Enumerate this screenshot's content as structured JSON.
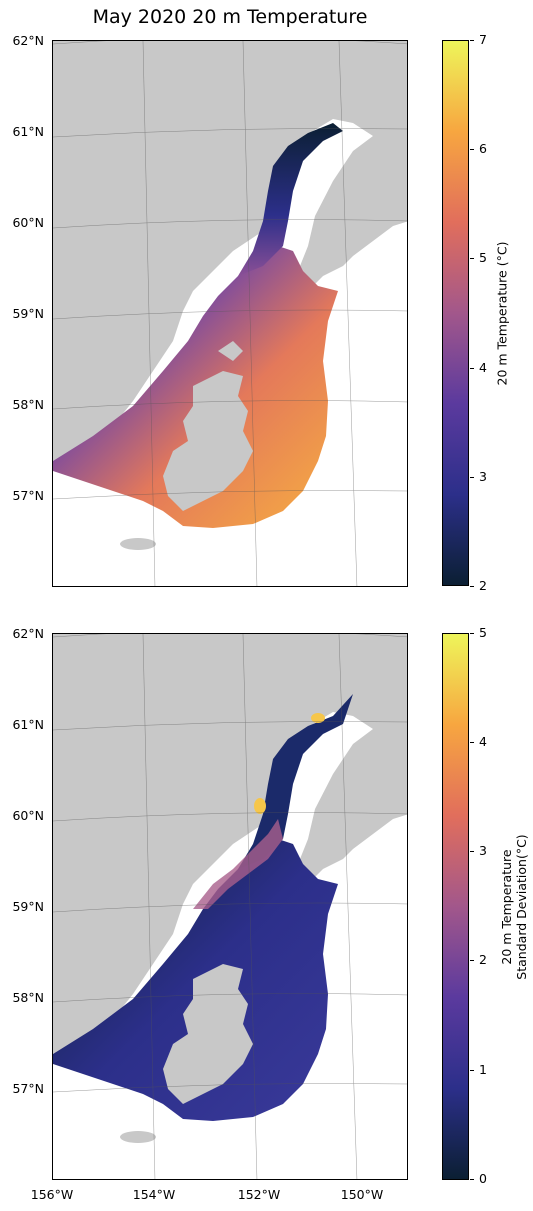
{
  "figure": {
    "title": "May 2020 20 m Temperature",
    "latitude_labels": [
      "62°N",
      "61°N",
      "60°N",
      "59°N",
      "58°N",
      "57°N"
    ],
    "longitude_labels": [
      "156°W",
      "154°W",
      "152°W",
      "150°W"
    ]
  },
  "panels": [
    {
      "variable": "20 m Temperature",
      "colorbar": {
        "label": "20 m Temperature (°C)",
        "ticks": [
          "2",
          "3",
          "4",
          "5",
          "6",
          "7"
        ],
        "range": [
          2,
          7
        ],
        "colormap": [
          "#0b1f33",
          "#2c2f8a",
          "#5b3a9e",
          "#a2578b",
          "#e16e5c",
          "#f7a640",
          "#eef55a"
        ]
      }
    },
    {
      "variable": "20 m Temperature Standard Deviation",
      "colorbar": {
        "label_line1": "20 m Temperature",
        "label_line2": "Standard Deviation(°C)",
        "ticks": [
          "0",
          "1",
          "2",
          "3",
          "4",
          "5"
        ],
        "range": [
          0,
          5
        ],
        "colormap": [
          "#0b1f33",
          "#2c2f8a",
          "#5b3a9e",
          "#a2578b",
          "#e16e5c",
          "#f7a640",
          "#eef55a"
        ]
      }
    }
  ],
  "colors": {
    "land": "#c8c8c8",
    "ocean": "#ffffff",
    "gridline": "#555555"
  }
}
